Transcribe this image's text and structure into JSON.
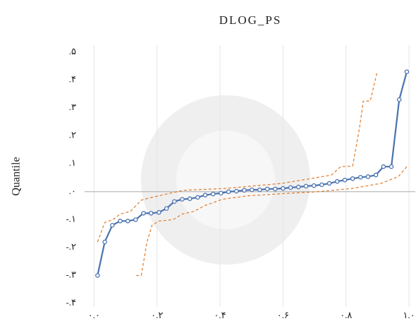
{
  "chart_data": {
    "type": "line",
    "title": "DLOG_PS",
    "y_label": "Quantile",
    "xlim": [
      -0.03,
      1.02
    ],
    "ylim": [
      -0.4,
      0.5
    ],
    "xticks": [
      {
        "value": 0,
        "label": "۰.۰"
      },
      {
        "value": 0.2,
        "label": "۰.۲"
      },
      {
        "value": 0.4,
        "label": "۰.۴"
      },
      {
        "value": 0.6,
        "label": "۰.۶"
      },
      {
        "value": 0.8,
        "label": "۰.۸"
      },
      {
        "value": 1.0,
        "label": "۱.۰"
      }
    ],
    "yticks": [
      {
        "value": 0.5,
        "label": ".۵"
      },
      {
        "value": 0.4,
        "label": ".۴"
      },
      {
        "value": 0.3,
        "label": ".۳"
      },
      {
        "value": 0.2,
        "label": ".۲"
      },
      {
        "value": 0.1,
        "label": ".۱"
      },
      {
        "value": 0,
        "label": ".۰"
      },
      {
        "value": -0.1,
        "label": "-.۱"
      },
      {
        "value": -0.2,
        "label": "-.۲"
      },
      {
        "value": -0.3,
        "label": "-.۳"
      },
      {
        "value": -0.4,
        "label": "-.۴"
      }
    ],
    "grid": "x",
    "series": [
      {
        "color": "#4a72b0",
        "style": "solid",
        "markers": true,
        "x": [
          0.011,
          0.034,
          0.058,
          0.083,
          0.107,
          0.132,
          0.157,
          0.181,
          0.206,
          0.23,
          0.255,
          0.28,
          0.304,
          0.329,
          0.353,
          0.378,
          0.403,
          0.427,
          0.452,
          0.477,
          0.501,
          0.526,
          0.55,
          0.575,
          0.6,
          0.624,
          0.649,
          0.673,
          0.698,
          0.723,
          0.747,
          0.772,
          0.796,
          0.821,
          0.846,
          0.87,
          0.895,
          0.919,
          0.944,
          0.969,
          0.993
        ],
        "values": [
          -0.3,
          -0.18,
          -0.12,
          -0.105,
          -0.105,
          -0.1,
          -0.077,
          -0.077,
          -0.074,
          -0.06,
          -0.035,
          -0.027,
          -0.025,
          -0.02,
          -0.012,
          -0.008,
          -0.005,
          0,
          0.002,
          0.005,
          0.007,
          0.007,
          0.01,
          0.01,
          0.012,
          0.015,
          0.017,
          0.02,
          0.022,
          0.025,
          0.03,
          0.037,
          0.042,
          0.047,
          0.052,
          0.054,
          0.06,
          0.09,
          0.09,
          0.33,
          0.43
        ]
      },
      {
        "color": "#e07b2a",
        "style": "dashed",
        "markers": false,
        "x": [
          0.011,
          0.034,
          0.06,
          0.083,
          0.116,
          0.15,
          0.184,
          0.251,
          0.284,
          0.418,
          0.597,
          0.687,
          0.754,
          0.783,
          0.821,
          0.843,
          0.855,
          0.877,
          0.899
        ],
        "values": [
          -0.18,
          -0.11,
          -0.1,
          -0.08,
          -0.07,
          -0.03,
          -0.02,
          -0.003,
          0.005,
          0.012,
          0.03,
          0.047,
          0.06,
          0.09,
          0.092,
          0.23,
          0.325,
          0.325,
          0.43
        ]
      },
      {
        "color": "#e07b2a",
        "style": "dashed",
        "markers": false,
        "x": [
          0.134,
          0.15,
          0.168,
          0.184,
          0.206,
          0.251,
          0.28,
          0.318,
          0.351,
          0.407,
          0.485,
          0.597,
          0.709,
          0.821,
          0.911,
          0.966,
          0.993
        ],
        "values": [
          -0.3,
          -0.3,
          -0.18,
          -0.12,
          -0.105,
          -0.1,
          -0.08,
          -0.07,
          -0.05,
          -0.027,
          -0.015,
          -0.007,
          0,
          0.012,
          0.03,
          0.054,
          0.09
        ]
      }
    ]
  }
}
